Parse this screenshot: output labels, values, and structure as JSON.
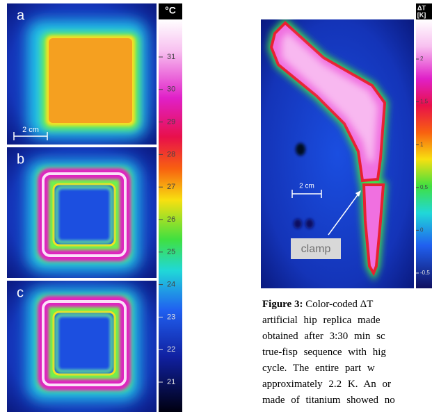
{
  "figure_left": {
    "unit_label": "°C",
    "panels": [
      {
        "label": "a",
        "scale_bar": "2 cm"
      },
      {
        "label": "b"
      },
      {
        "label": "c"
      }
    ],
    "colorbar_ticks": [
      "31",
      "30",
      "29",
      "28",
      "27",
      "26",
      "25",
      "24",
      "23",
      "22",
      "21"
    ]
  },
  "figure_right": {
    "unit_label": [
      "ΔT",
      "[K]"
    ],
    "colorbar_ticks": [
      "2",
      "1,5",
      "1",
      "0,5",
      "0",
      "-0,5"
    ],
    "scale_bar": "2 cm",
    "annotation": "clamp"
  },
  "caption": {
    "label": "Figure 3:",
    "lines": [
      "Color-coded ΔT",
      "artificial hip replica made",
      "obtained after 3:30 min sc",
      "true-fisp sequence with hig",
      "cycle. The entire part w",
      "approximately 2.2 K. An or",
      "made of titanium showed no"
    ]
  }
}
